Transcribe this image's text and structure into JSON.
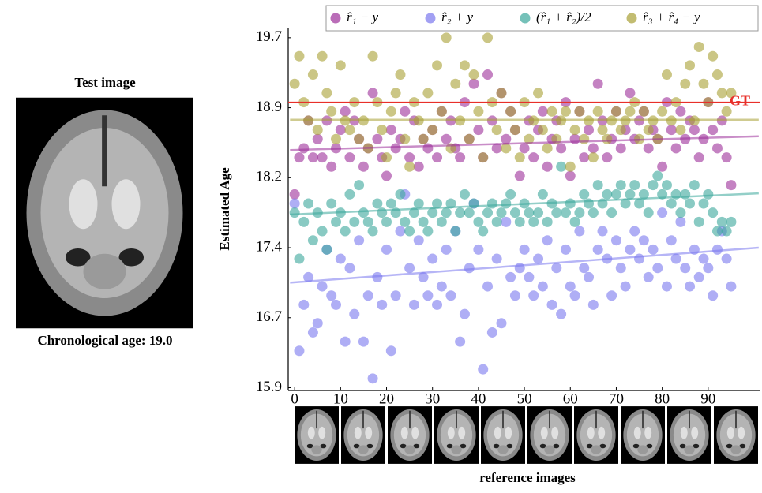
{
  "chart_data": {
    "type": "scatter",
    "test_image_title": "Test image",
    "test_image_caption": "Chronological age: 19.0",
    "xlabel": "reference images",
    "ylabel": "Estimated Age",
    "xlim": [
      -1.4,
      101.2
    ],
    "ylim": [
      15.87,
      19.81
    ],
    "xticks": [
      0,
      10,
      20,
      30,
      40,
      50,
      60,
      70,
      80,
      90
    ],
    "yticks": [
      15.9,
      {
        "value": 16.66,
        "label": "16.7"
      },
      {
        "value": 17.42,
        "label": "17.4"
      },
      {
        "value": 18.18,
        "label": "18.2"
      },
      {
        "value": 18.94,
        "label": "18.9"
      },
      19.7
    ],
    "reference_line": {
      "value": 19.0,
      "label": "GT",
      "color": "#e8302a"
    },
    "trend_x": [
      -1,
      101
    ],
    "x": [
      0,
      1,
      2,
      3,
      4,
      5,
      6,
      7,
      8,
      9,
      10,
      11,
      12,
      13,
      14,
      15,
      16,
      17,
      18,
      19,
      20,
      21,
      22,
      23,
      24,
      25,
      26,
      27,
      28,
      29,
      30,
      31,
      32,
      33,
      34,
      35,
      36,
      37,
      38,
      39,
      40,
      41,
      42,
      43,
      44,
      45,
      46,
      47,
      48,
      49,
      50,
      51,
      52,
      53,
      54,
      55,
      56,
      57,
      58,
      59,
      60,
      61,
      62,
      63,
      64,
      65,
      66,
      67,
      68,
      69,
      70,
      71,
      72,
      73,
      74,
      75,
      76,
      77,
      78,
      79,
      80,
      81,
      82,
      83,
      84,
      85,
      86,
      87,
      88,
      89,
      90,
      91,
      92,
      93,
      94,
      95
    ],
    "series": [
      {
        "name": "r̂₁ − y",
        "color": "#9c2f9a",
        "trend": [
          18.48,
          18.63
        ],
        "values": [
          18.0,
          18.4,
          18.5,
          18.8,
          18.4,
          18.6,
          18.4,
          18.8,
          18.3,
          18.5,
          18.7,
          18.9,
          18.4,
          18.8,
          18.6,
          18.3,
          18.5,
          19.1,
          18.6,
          18.4,
          18.2,
          18.7,
          18.5,
          18.6,
          18.9,
          18.4,
          18.8,
          18.3,
          18.6,
          18.5,
          18.7,
          18.4,
          18.9,
          18.6,
          18.8,
          18.5,
          18.4,
          19.0,
          18.6,
          19.2,
          18.7,
          18.4,
          19.3,
          18.8,
          18.5,
          19.1,
          18.6,
          18.9,
          18.7,
          18.2,
          18.5,
          18.8,
          18.4,
          18.7,
          18.9,
          18.3,
          18.6,
          18.8,
          18.5,
          19.0,
          18.2,
          18.6,
          18.9,
          18.4,
          18.7,
          18.5,
          19.2,
          18.8,
          18.4,
          18.6,
          18.9,
          18.5,
          18.7,
          19.1,
          18.6,
          18.8,
          18.9,
          18.5,
          18.7,
          18.6,
          18.3,
          19.0,
          18.7,
          18.5,
          18.9,
          18.6,
          18.8,
          18.7,
          18.4,
          18.6,
          19.0,
          18.7,
          18.5,
          18.8,
          18.4,
          18.1
        ]
      },
      {
        "name": "r̂₂ + y",
        "color": "#7a78ee",
        "trend": [
          17.04,
          17.42
        ],
        "values": [
          17.9,
          16.3,
          16.8,
          17.1,
          16.5,
          16.6,
          17.0,
          17.4,
          16.9,
          16.8,
          17.3,
          16.4,
          17.2,
          16.7,
          17.5,
          16.4,
          16.9,
          16.0,
          17.1,
          16.8,
          17.4,
          16.3,
          16.9,
          17.6,
          18.0,
          17.2,
          16.8,
          17.5,
          17.1,
          16.9,
          17.3,
          16.8,
          17.0,
          17.4,
          16.9,
          17.6,
          16.4,
          16.7,
          17.2,
          17.9,
          17.4,
          16.1,
          17.0,
          16.5,
          17.3,
          16.6,
          17.7,
          17.1,
          16.9,
          17.2,
          17.4,
          17.1,
          16.9,
          17.3,
          17.0,
          17.5,
          16.8,
          17.2,
          16.7,
          17.4,
          17.0,
          16.9,
          17.6,
          17.2,
          17.1,
          16.8,
          17.4,
          17.6,
          17.3,
          16.9,
          17.5,
          17.2,
          17.0,
          17.4,
          17.6,
          17.3,
          17.5,
          17.1,
          17.4,
          17.2,
          17.8,
          17.0,
          17.5,
          17.3,
          17.7,
          17.2,
          17.0,
          17.4,
          17.1,
          17.3,
          17.2,
          16.9,
          17.4,
          17.6,
          17.3,
          17.0
        ]
      },
      {
        "name": "(r̂₁ + r̂₂)/2",
        "color": "#3aa79b",
        "trend": [
          17.78,
          18.01
        ],
        "values": [
          17.8,
          17.3,
          17.7,
          17.9,
          17.5,
          17.8,
          17.6,
          17.4,
          17.9,
          17.7,
          17.8,
          17.6,
          18.0,
          17.7,
          18.1,
          17.8,
          17.7,
          17.6,
          17.9,
          17.8,
          17.7,
          17.9,
          17.8,
          18.0,
          17.7,
          17.6,
          17.8,
          17.9,
          17.7,
          17.6,
          17.8,
          17.9,
          17.7,
          17.8,
          17.9,
          17.6,
          17.8,
          18.0,
          17.8,
          17.9,
          17.7,
          17.6,
          17.8,
          17.9,
          17.7,
          17.8,
          17.9,
          18.0,
          17.8,
          17.7,
          17.9,
          17.8,
          17.7,
          17.8,
          18.0,
          17.7,
          17.9,
          17.8,
          18.3,
          17.8,
          17.9,
          17.7,
          17.8,
          18.0,
          17.9,
          17.8,
          18.1,
          17.9,
          18.0,
          17.8,
          18.0,
          18.1,
          17.9,
          18.0,
          18.1,
          17.9,
          18.0,
          17.8,
          18.1,
          18.2,
          18.0,
          18.1,
          17.9,
          18.0,
          17.8,
          18.0,
          17.9,
          18.1,
          17.7,
          17.9,
          18.0,
          17.8,
          17.6,
          17.7,
          17.6,
          17.7
        ]
      },
      {
        "name": "r̂₃ + r̂₄ − y",
        "color": "#a8a034",
        "trend": [
          18.81,
          18.81
        ],
        "values": [
          19.2,
          19.5,
          19.0,
          18.8,
          19.3,
          18.7,
          19.5,
          19.1,
          18.9,
          18.6,
          19.4,
          18.8,
          18.7,
          19.0,
          18.6,
          18.8,
          18.5,
          19.5,
          19.0,
          18.7,
          18.4,
          18.9,
          19.1,
          19.3,
          18.6,
          18.3,
          19.0,
          18.8,
          18.6,
          19.1,
          18.7,
          19.4,
          18.9,
          19.7,
          18.5,
          19.2,
          18.8,
          19.4,
          18.6,
          19.3,
          18.9,
          18.4,
          19.7,
          19.0,
          18.7,
          19.1,
          18.5,
          18.9,
          18.7,
          18.4,
          19.0,
          18.6,
          18.8,
          19.1,
          18.7,
          18.5,
          18.9,
          18.6,
          18.8,
          18.9,
          18.3,
          18.7,
          18.9,
          18.6,
          18.8,
          18.4,
          18.9,
          18.7,
          18.6,
          18.8,
          18.9,
          18.7,
          18.8,
          18.9,
          19.0,
          18.6,
          18.9,
          18.7,
          18.8,
          18.6,
          18.9,
          19.3,
          18.8,
          19.0,
          18.7,
          19.2,
          19.4,
          18.8,
          19.6,
          19.2,
          19.0,
          19.5,
          19.3,
          19.1,
          18.9,
          19.1
        ]
      }
    ]
  }
}
